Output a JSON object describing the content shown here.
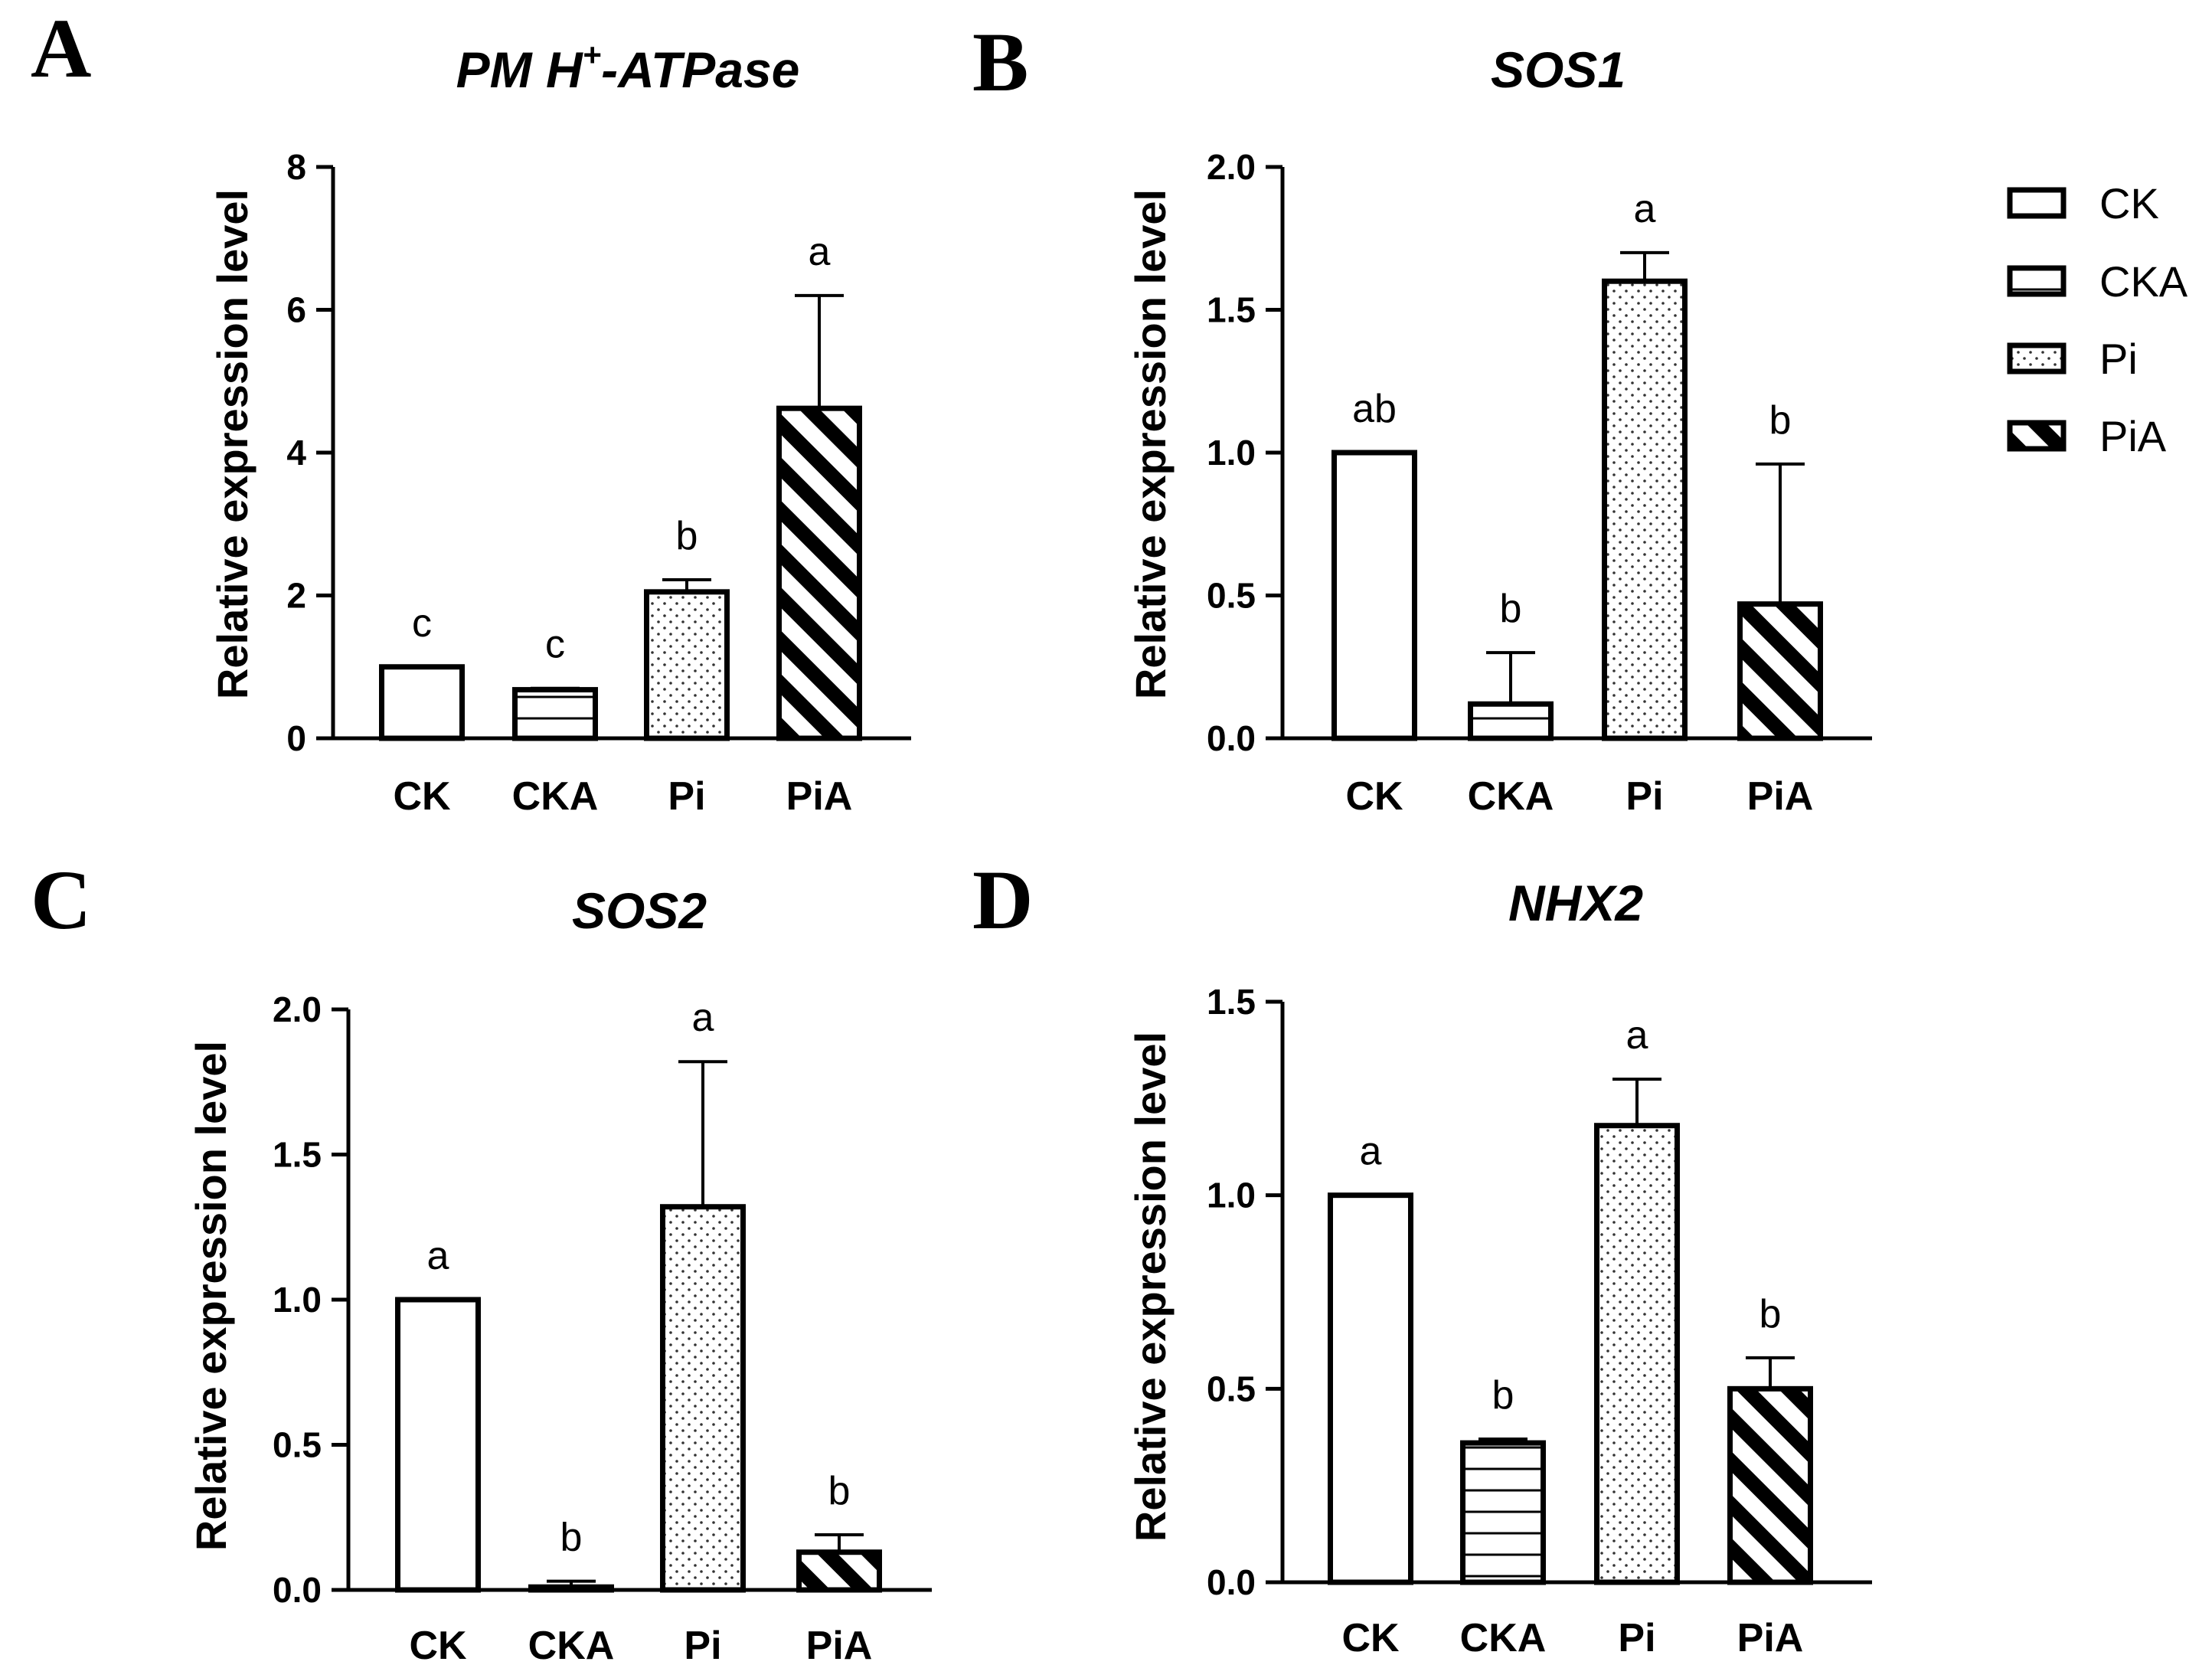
{
  "legend": {
    "items": [
      {
        "label": "CK",
        "pattern": "empty"
      },
      {
        "label": "CKA",
        "pattern": "hstripe"
      },
      {
        "label": "Pi",
        "pattern": "dots"
      },
      {
        "label": "PiA",
        "pattern": "diag"
      }
    ]
  },
  "chart_data": [
    {
      "panel": "A",
      "type": "bar",
      "title_main": "PM H",
      "title_sup": "+",
      "title_rest": "-ATPase",
      "ylabel": "Relative expression level",
      "ylim": [
        0,
        8
      ],
      "yticks": [
        0,
        2,
        4,
        6,
        8
      ],
      "ytick_labels": [
        "0",
        "2",
        "4",
        "6",
        "8"
      ],
      "categories": [
        "CK",
        "CKA",
        "Pi",
        "PiA"
      ],
      "values": [
        1.0,
        0.68,
        2.05,
        4.62
      ],
      "errors": [
        0,
        0.02,
        0.17,
        1.58
      ],
      "significance": [
        "c",
        "c",
        "b",
        "a"
      ]
    },
    {
      "panel": "B",
      "type": "bar",
      "title_main": "SOS1",
      "ylabel": "Relative expression level",
      "ylim": [
        0,
        2.0
      ],
      "yticks": [
        0,
        0.5,
        1.0,
        1.5,
        2.0
      ],
      "ytick_labels": [
        "0.0",
        "0.5",
        "1.0",
        "1.5",
        "2.0"
      ],
      "categories": [
        "CK",
        "CKA",
        "Pi",
        "PiA"
      ],
      "values": [
        1.0,
        0.12,
        1.6,
        0.47
      ],
      "errors": [
        0,
        0.18,
        0.1,
        0.49
      ],
      "significance": [
        "ab",
        "b",
        "a",
        "b"
      ]
    },
    {
      "panel": "C",
      "type": "bar",
      "title_main": "SOS2",
      "ylabel": "Relative expression level",
      "ylim": [
        0,
        2.0
      ],
      "yticks": [
        0,
        0.5,
        1.0,
        1.5,
        2.0
      ],
      "ytick_labels": [
        "0.0",
        "0.5",
        "1.0",
        "1.5",
        "2.0"
      ],
      "categories": [
        "CK",
        "CKA",
        "Pi",
        "PiA"
      ],
      "values": [
        1.0,
        0.01,
        1.32,
        0.13
      ],
      "errors": [
        0,
        0.02,
        0.5,
        0.06
      ],
      "significance": [
        "a",
        "b",
        "a",
        "b"
      ]
    },
    {
      "panel": "D",
      "type": "bar",
      "title_main": "NHX2",
      "ylabel": "Relative expression level",
      "ylim": [
        0,
        1.5
      ],
      "yticks": [
        0,
        0.5,
        1.0,
        1.5
      ],
      "ytick_labels": [
        "0.0",
        "0.5",
        "1.0",
        "1.5"
      ],
      "categories": [
        "CK",
        "CKA",
        "Pi",
        "PiA"
      ],
      "values": [
        1.0,
        0.36,
        1.18,
        0.5
      ],
      "errors": [
        0,
        0.01,
        0.12,
        0.08
      ],
      "significance": [
        "a",
        "b",
        "a",
        "b"
      ]
    }
  ]
}
